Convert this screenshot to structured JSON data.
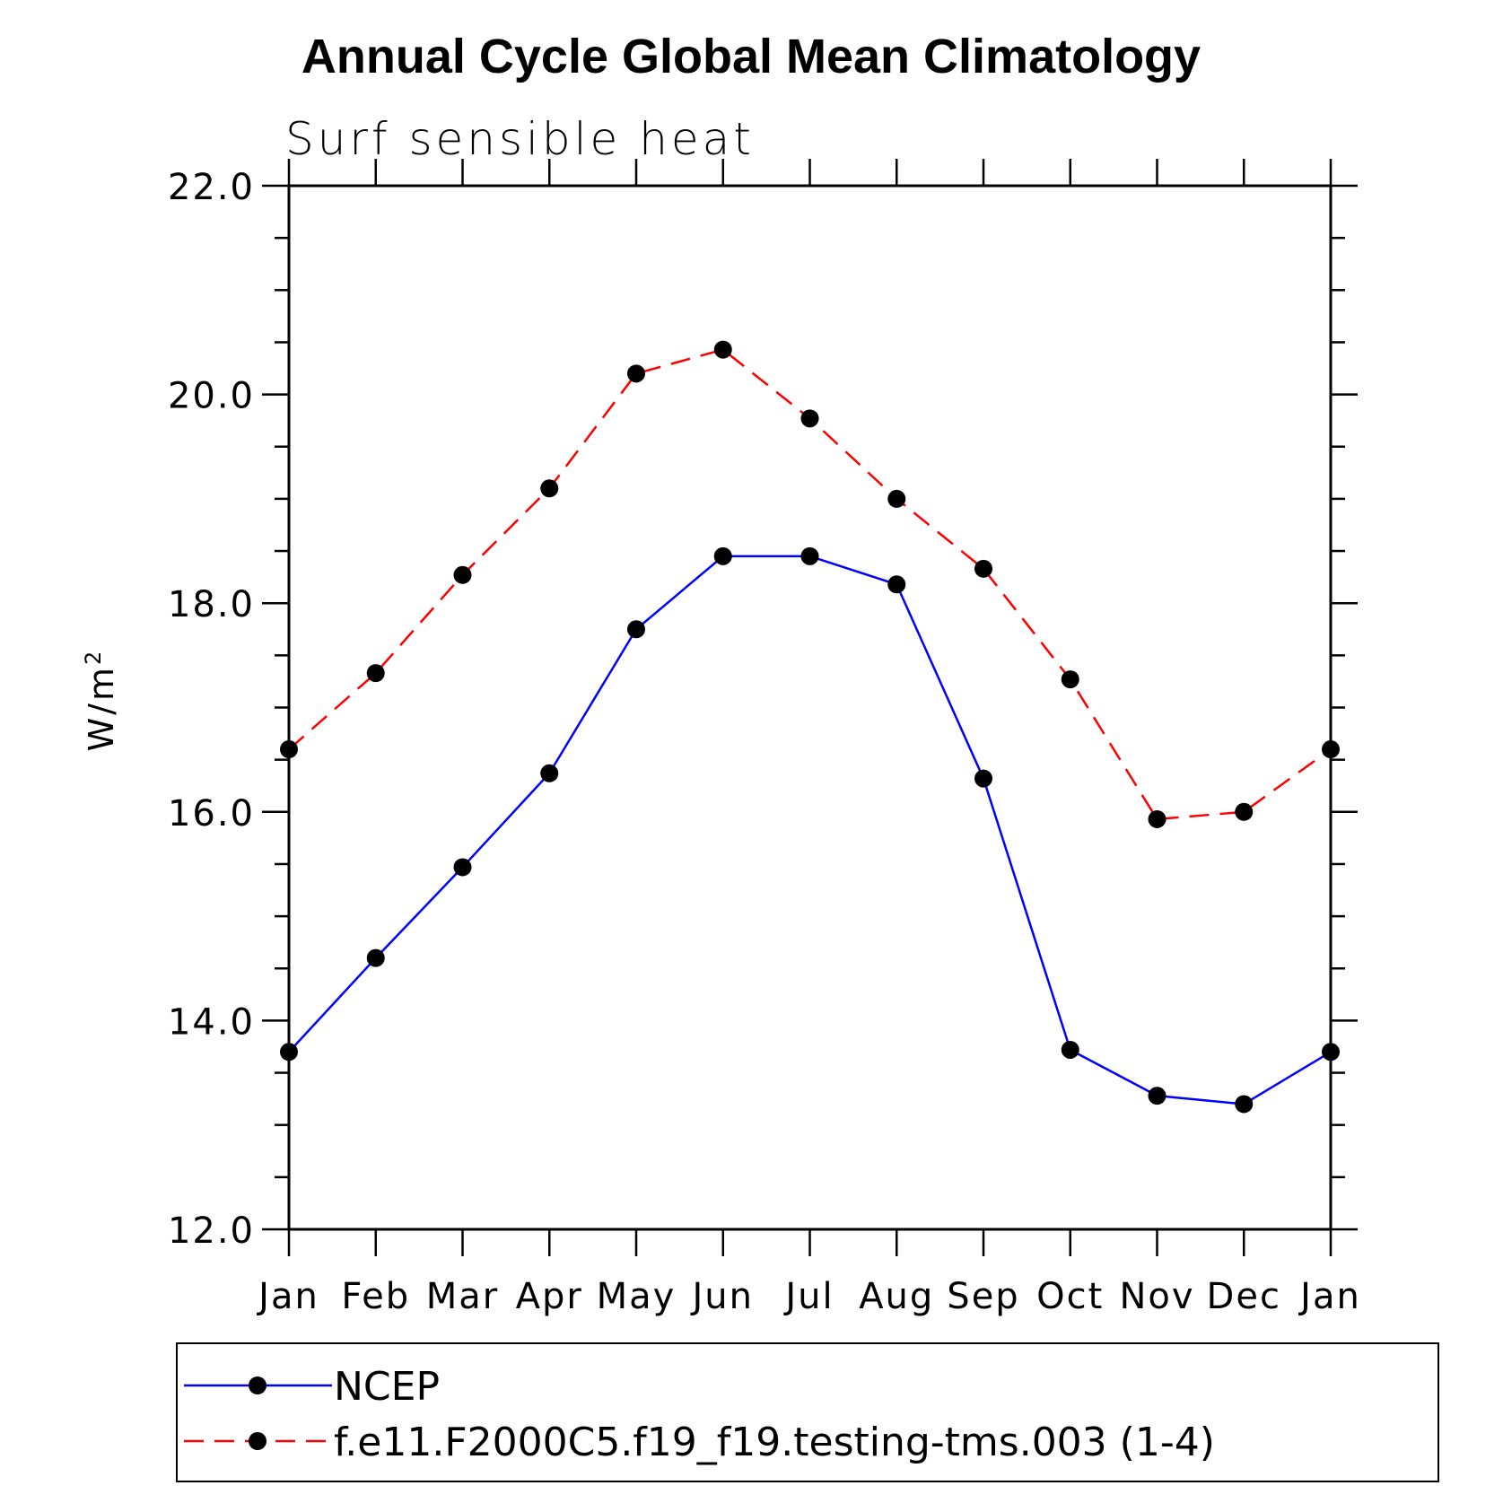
{
  "chart_data": {
    "type": "line",
    "title": "Annual Cycle Global Mean Climatology",
    "subtitle": "Surf sensible heat",
    "xlabel": "",
    "ylabel": "W/m",
    "ylabel_superscript": "2",
    "categories": [
      "Jan",
      "Feb",
      "Mar",
      "Apr",
      "May",
      "Jun",
      "Jul",
      "Aug",
      "Sep",
      "Oct",
      "Nov",
      "Dec",
      "Jan"
    ],
    "ylim": [
      12.0,
      22.0
    ],
    "yticks": [
      "12.0",
      "14.0",
      "16.0",
      "18.0",
      "20.0",
      "22.0"
    ],
    "grid": false,
    "legend_position": "bottom",
    "series": [
      {
        "name": "NCEP",
        "color": "#0000ff",
        "dash": "solid",
        "marker": "filled-circle",
        "values": [
          13.7,
          14.6,
          15.47,
          16.37,
          17.75,
          18.45,
          18.45,
          18.18,
          16.32,
          13.72,
          13.28,
          13.2,
          13.7
        ]
      },
      {
        "name": "f.e11.F2000C5.f19_f19.testing-tms.003 (1-4)",
        "color": "#ff0000",
        "dash": "dashed",
        "marker": "filled-circle",
        "values": [
          16.6,
          17.33,
          18.27,
          19.1,
          20.2,
          20.43,
          19.77,
          19.0,
          18.33,
          17.27,
          15.93,
          16.0,
          16.6
        ]
      }
    ]
  }
}
